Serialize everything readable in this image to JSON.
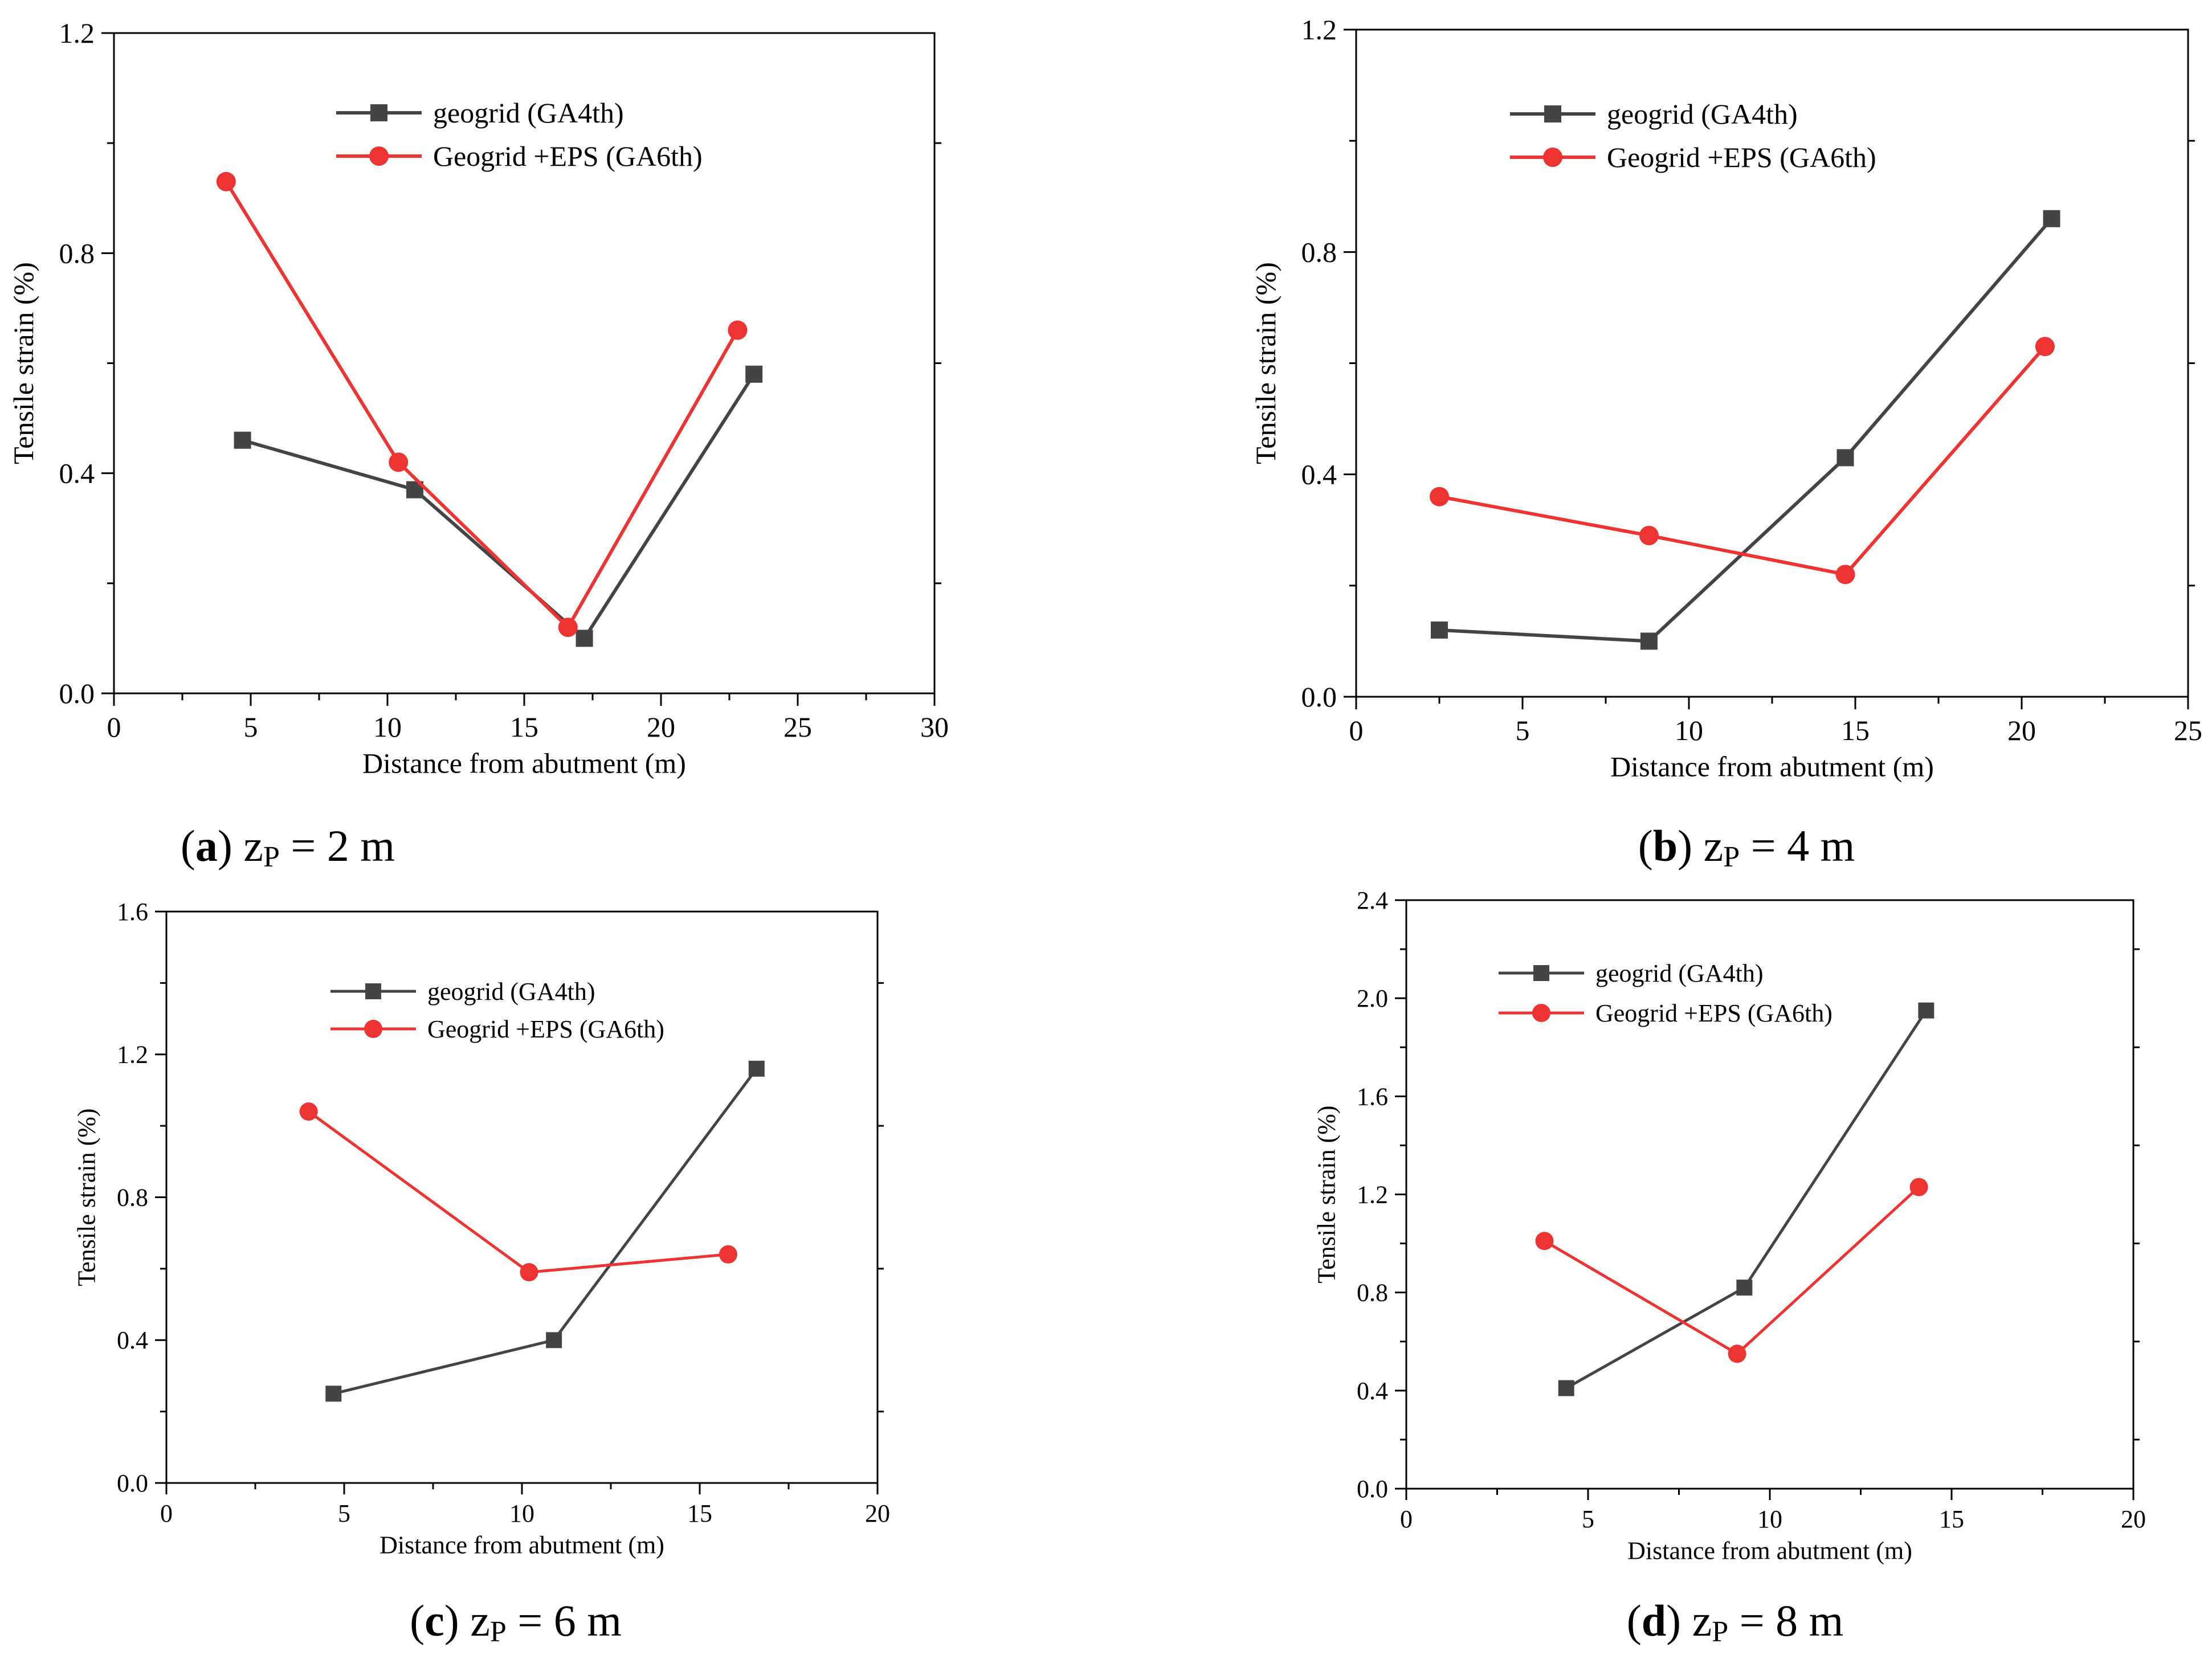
{
  "colors": {
    "geogrid": "#444444",
    "eps": "#ee3333",
    "axis": "#000000"
  },
  "chart_data": [
    {
      "type": "line",
      "panel_letter": "a",
      "caption": {
        "open": "(",
        "letter": "a",
        "close": ")",
        "var": "z",
        "sub": "P",
        "eq": " = 2 m"
      },
      "xlabel": "Distance from abutment (m)",
      "ylabel": "Tensile strain (%)",
      "xlim": [
        0,
        30
      ],
      "ylim": [
        0,
        1.2
      ],
      "xticks": [
        0,
        5,
        10,
        15,
        20,
        25,
        30
      ],
      "yticks": [
        "0.0",
        "0.4",
        "0.8",
        "1.2"
      ],
      "ytick_values": [
        0,
        0.4,
        0.8,
        1.2
      ],
      "legend": "top-center",
      "series": [
        {
          "name": "geogrid (GA4th)",
          "marker": "square",
          "color": "#444444",
          "x": [
            4.7,
            11.0,
            17.2,
            23.4
          ],
          "y": [
            0.46,
            0.37,
            0.1,
            0.58
          ]
        },
        {
          "name": "Geogrid +EPS (GA6th)",
          "marker": "circle",
          "color": "#ee3333",
          "x": [
            4.1,
            10.4,
            16.6,
            22.8
          ],
          "y": [
            0.93,
            0.42,
            0.12,
            0.66
          ]
        }
      ]
    },
    {
      "type": "line",
      "panel_letter": "b",
      "caption": {
        "open": "(",
        "letter": "b",
        "close": ")",
        "var": "z",
        "sub": "P",
        "eq": " = 4 m"
      },
      "xlabel": "Distance from abutment (m)",
      "ylabel": "Tensile strain (%)",
      "xlim": [
        0,
        25
      ],
      "ylim": [
        0,
        1.2
      ],
      "xticks": [
        0,
        5,
        10,
        15,
        20,
        25
      ],
      "yticks": [
        "0.0",
        "0.4",
        "0.8",
        "1.2"
      ],
      "ytick_values": [
        0,
        0.4,
        0.8,
        1.2
      ],
      "legend": "top-center",
      "series": [
        {
          "name": "geogrid (GA4th)",
          "marker": "square",
          "color": "#444444",
          "x": [
            2.5,
            8.8,
            14.7,
            20.9
          ],
          "y": [
            0.12,
            0.1,
            0.43,
            0.86
          ]
        },
        {
          "name": "Geogrid +EPS (GA6th)",
          "marker": "circle",
          "color": "#ee3333",
          "x": [
            2.5,
            8.8,
            14.7,
            20.7
          ],
          "y": [
            0.36,
            0.29,
            0.22,
            0.63
          ]
        }
      ]
    },
    {
      "type": "line",
      "panel_letter": "c",
      "caption": {
        "open": "(",
        "letter": "c",
        "close": ")",
        "var": "z",
        "sub": "P",
        "eq": " = 6 m"
      },
      "xlabel": "Distance from abutment (m)",
      "ylabel": "Tensile strain (%)",
      "xlim": [
        0,
        20
      ],
      "ylim": [
        0,
        1.6
      ],
      "xticks": [
        0,
        5,
        10,
        15,
        20
      ],
      "yticks": [
        "0.0",
        "0.4",
        "0.8",
        "1.2",
        "1.6"
      ],
      "ytick_values": [
        0,
        0.4,
        0.8,
        1.2,
        1.6
      ],
      "legend": "top-center",
      "series": [
        {
          "name": "geogrid (GA4th)",
          "marker": "square",
          "color": "#444444",
          "x": [
            4.7,
            10.9,
            16.6
          ],
          "y": [
            0.25,
            0.4,
            1.16
          ]
        },
        {
          "name": "Geogrid +EPS (GA6th)",
          "marker": "circle",
          "color": "#ee3333",
          "x": [
            4.0,
            10.2,
            15.8
          ],
          "y": [
            1.04,
            0.59,
            0.64
          ]
        }
      ]
    },
    {
      "type": "line",
      "panel_letter": "d",
      "caption": {
        "open": "(",
        "letter": "d",
        "close": ")",
        "var": "z",
        "sub": "P",
        "eq": " = 8 m"
      },
      "xlabel": "Distance from abutment (m)",
      "ylabel": "Tensile strain (%)",
      "xlim": [
        0,
        20
      ],
      "ylim": [
        0,
        2.4
      ],
      "xticks": [
        0,
        5,
        10,
        15,
        20
      ],
      "yticks": [
        "0.0",
        "0.4",
        "0.8",
        "1.2",
        "1.6",
        "2.0",
        "2.4"
      ],
      "ytick_values": [
        0,
        0.4,
        0.8,
        1.2,
        1.6,
        2.0,
        2.4
      ],
      "legend": "top-left",
      "series": [
        {
          "name": "geogrid (GA4th)",
          "marker": "square",
          "color": "#444444",
          "x": [
            4.4,
            9.3,
            14.3
          ],
          "y": [
            0.41,
            0.82,
            1.95
          ]
        },
        {
          "name": "Geogrid +EPS (GA6th)",
          "marker": "circle",
          "color": "#ee3333",
          "x": [
            3.8,
            9.1,
            14.1
          ],
          "y": [
            1.01,
            0.55,
            1.23
          ]
        }
      ]
    }
  ]
}
